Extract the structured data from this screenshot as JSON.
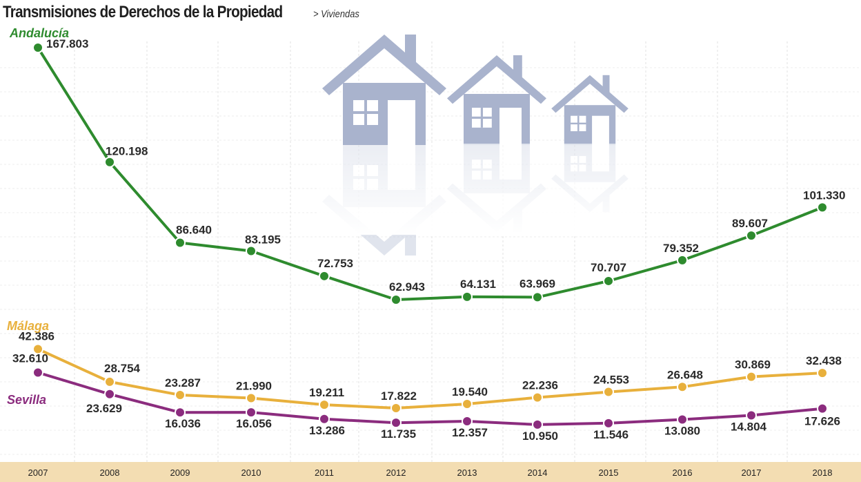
{
  "header": {
    "title": "Transmisiones de Derechos de la Propiedad",
    "subtitle": "> Viviendas"
  },
  "colors": {
    "andalucia": "#2e8b2e",
    "malaga": "#e8b03c",
    "sevilla": "#8b2c7e",
    "axis_band": "#f3ddb2",
    "houses": "#a9b3cd"
  },
  "icons": [
    "house-icon",
    "house-icon",
    "house-icon"
  ],
  "chart_data": {
    "type": "line",
    "title": "Transmisiones de Derechos de la Propiedad",
    "subtitle": "> Viviendas",
    "categories": [
      "2007",
      "2008",
      "2009",
      "2010",
      "2011",
      "2012",
      "2013",
      "2014",
      "2015",
      "2016",
      "2017",
      "2018"
    ],
    "ylim": [
      0,
      175000
    ],
    "grid": true,
    "series": [
      {
        "name": "Andalucía",
        "color": "#2e8b2e",
        "values": [
          167803,
          120198,
          86640,
          83195,
          72753,
          62943,
          64131,
          63969,
          70707,
          79352,
          89607,
          101330
        ],
        "labels": [
          "167.803",
          "120.198",
          "86.640",
          "83.195",
          "72.753",
          "62.943",
          "64.131",
          "63.969",
          "70.707",
          "79.352",
          "89.607",
          "101.330"
        ]
      },
      {
        "name": "Málaga",
        "color": "#e8b03c",
        "values": [
          42386,
          28754,
          23287,
          21990,
          19211,
          17822,
          19540,
          22236,
          24553,
          26648,
          30869,
          32438
        ],
        "labels": [
          "42.386",
          "28.754",
          "23.287",
          "21.990",
          "19.211",
          "17.822",
          "19.540",
          "22.236",
          "24.553",
          "26.648",
          "30.869",
          "32.438"
        ]
      },
      {
        "name": "Sevilla",
        "color": "#8b2c7e",
        "values": [
          32610,
          23629,
          16036,
          16056,
          13286,
          11735,
          12357,
          10950,
          11546,
          13080,
          14804,
          17626
        ],
        "labels": [
          "32.610",
          "23.629",
          "16.036",
          "16.056",
          "13.286",
          "11.735",
          "12.357",
          "10.950",
          "11.546",
          "13.080",
          "14.804",
          "17.626"
        ]
      }
    ]
  }
}
